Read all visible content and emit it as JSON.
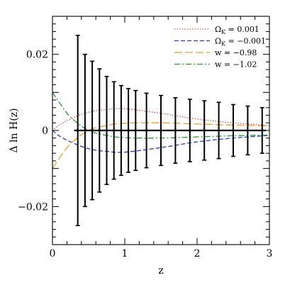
{
  "chart_data": {
    "type": "line",
    "xlabel": "z",
    "ylabel": "Δ ln H(z)",
    "xlim": [
      0,
      3
    ],
    "ylim": [
      -0.03,
      0.03
    ],
    "x_ticks": [
      0,
      1,
      2,
      3
    ],
    "x_tick_labels": [
      "0",
      "1",
      "2",
      "3"
    ],
    "y_ticks": [
      -0.02,
      0,
      0.02
    ],
    "y_tick_labels": [
      "−0.02",
      "0",
      "0.02"
    ],
    "legend_position": "top-right",
    "grid": false,
    "series": [
      {
        "name": "Ω_K = 0.001",
        "legend_main": "Ω",
        "legend_sub": "K",
        "legend_rest": " = 0.001",
        "color": "#d62728",
        "dash": "dotted",
        "x": [
          0,
          0.1,
          0.25,
          0.5,
          0.75,
          1.0,
          1.5,
          2.0,
          2.5,
          3.0
        ],
        "values": [
          0.0,
          0.0015,
          0.003,
          0.0048,
          0.0055,
          0.0057,
          0.0045,
          0.003,
          0.002,
          0.0013
        ]
      },
      {
        "name": "Ω_K = −0.001",
        "legend_main": "Ω",
        "legend_sub": "K",
        "legend_rest": " = −0.001",
        "color": "#1f3fd6",
        "dash": "dashed",
        "x": [
          0,
          0.1,
          0.25,
          0.5,
          0.75,
          1.0,
          1.5,
          2.0,
          2.5,
          3.0
        ],
        "values": [
          0.0,
          -0.0015,
          -0.003,
          -0.0048,
          -0.0055,
          -0.0057,
          -0.0045,
          -0.003,
          -0.002,
          -0.0013
        ]
      },
      {
        "name": "w = −0.98",
        "legend_main": "w",
        "legend_sub": "",
        "legend_rest": " = −0.98",
        "color": "#f59c1a",
        "dash": "longdash",
        "x": [
          0,
          0.1,
          0.25,
          0.5,
          0.75,
          1.0,
          1.5,
          2.0,
          2.5,
          3.0
        ],
        "values": [
          -0.01,
          -0.0072,
          -0.0035,
          0.0,
          0.0013,
          0.0019,
          0.002,
          0.0017,
          0.0014,
          0.0012
        ]
      },
      {
        "name": "w = −1.02",
        "legend_main": "w",
        "legend_sub": "",
        "legend_rest": " = −1.02",
        "color": "#1e9e2a",
        "dash": "dashdot",
        "x": [
          0,
          0.1,
          0.25,
          0.5,
          0.75,
          1.0,
          1.5,
          2.0,
          2.5,
          3.0
        ],
        "values": [
          0.01,
          0.0072,
          0.0035,
          0.0,
          -0.0013,
          -0.0019,
          -0.002,
          -0.0017,
          -0.0014,
          -0.0012
        ]
      }
    ],
    "error_bars": {
      "x": [
        0.35,
        0.45,
        0.55,
        0.65,
        0.75,
        0.85,
        0.95,
        1.05,
        1.15,
        1.3,
        1.5,
        1.7,
        1.9,
        2.1,
        2.3,
        2.5,
        2.7,
        2.9
      ],
      "y": [
        0,
        0,
        0,
        0,
        0,
        0,
        0,
        0,
        0,
        0,
        0,
        0,
        0,
        0,
        0,
        0,
        0,
        0
      ],
      "yerr": [
        0.025,
        0.02,
        0.0182,
        0.0162,
        0.0142,
        0.0128,
        0.0118,
        0.011,
        0.0105,
        0.0098,
        0.0092,
        0.0086,
        0.0082,
        0.0078,
        0.0074,
        0.0068,
        0.0064,
        0.006
      ],
      "x_halfwidth": 0.05,
      "color": "#000000"
    }
  }
}
